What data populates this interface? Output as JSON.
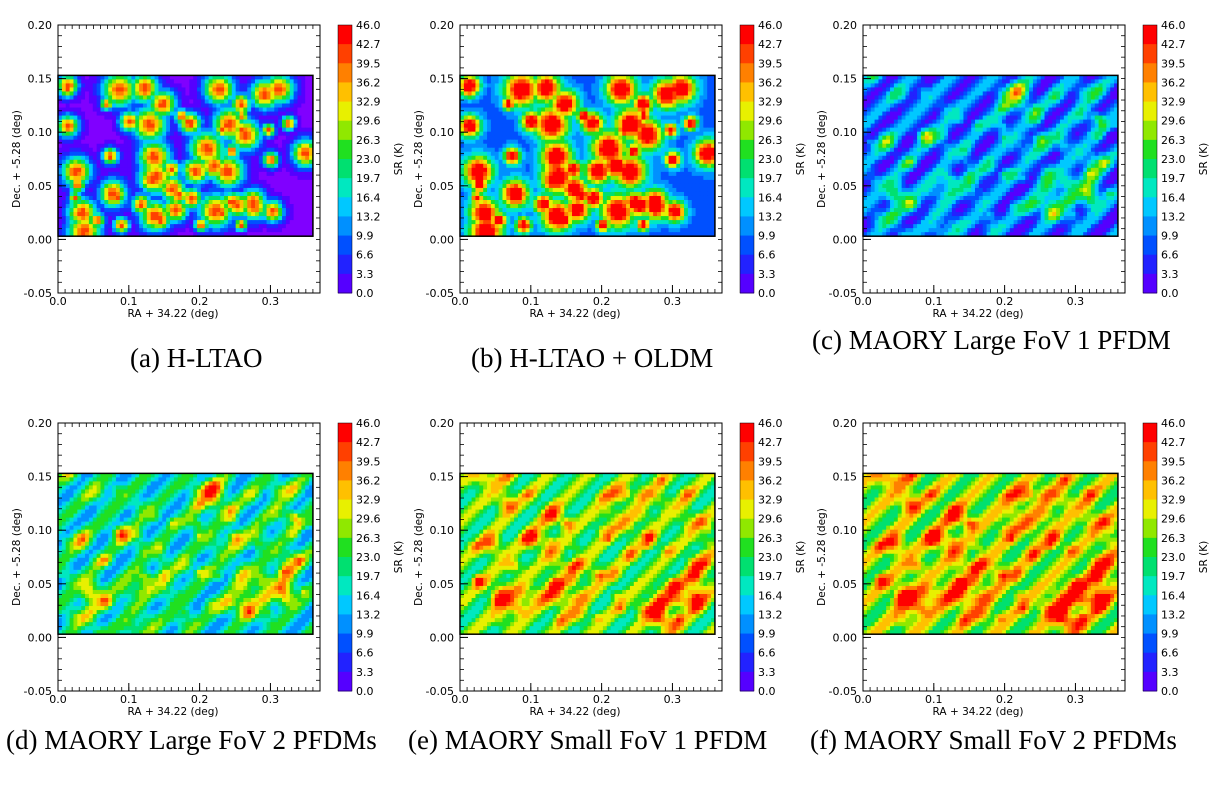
{
  "chart_data": [
    {
      "type": "heatmap",
      "title": "",
      "caption": "(a) H-LTAO",
      "xlabel": "RA + 34.22 (deg)",
      "ylabel": "Dec. + -5.28 (deg)",
      "colorbar_label": "SR (K)",
      "xlim": [
        0.0,
        0.37
      ],
      "ylim": [
        -0.05,
        0.2
      ],
      "xticks": [
        "0.0",
        "0.1",
        "0.2",
        "0.3"
      ],
      "yticks": [
        "0.20",
        "0.15",
        "0.10",
        "0.05",
        "0.00",
        "-0.05"
      ],
      "colorbar_ticks": [
        "46.0",
        "42.7",
        "39.5",
        "36.2",
        "32.9",
        "29.6",
        "26.3",
        "23.0",
        "19.7",
        "16.4",
        "13.2",
        "9.9",
        "6.6",
        "3.3",
        "0.0"
      ],
      "field": {
        "x": [
          0.0,
          0.36
        ],
        "y": [
          0.003,
          0.153
        ]
      },
      "mean_sr": 20,
      "sr_range": [
        0,
        46
      ],
      "pattern": "blobs",
      "seed": 11
    },
    {
      "type": "heatmap",
      "title": "",
      "caption": "(b) H-LTAO + OLDM",
      "xlabel": "RA + 34.22 (deg)",
      "ylabel": "Dec. + -5.28 (deg)",
      "colorbar_label": "SR (K)",
      "xlim": [
        0.0,
        0.37
      ],
      "ylim": [
        -0.05,
        0.2
      ],
      "xticks": [
        "0.0",
        "0.1",
        "0.2",
        "0.3"
      ],
      "yticks": [
        "0.20",
        "0.15",
        "0.10",
        "0.05",
        "0.00",
        "-0.05"
      ],
      "colorbar_ticks": [
        "46.0",
        "42.7",
        "39.5",
        "36.2",
        "32.9",
        "29.6",
        "26.3",
        "23.0",
        "19.7",
        "16.4",
        "13.2",
        "9.9",
        "6.6",
        "3.3",
        "0.0"
      ],
      "field": {
        "x": [
          0.0,
          0.36
        ],
        "y": [
          0.003,
          0.153
        ]
      },
      "mean_sr": 29,
      "sr_range": [
        0,
        46
      ],
      "pattern": "blobs",
      "seed": 11
    },
    {
      "type": "heatmap",
      "title": "",
      "caption": "(c) MAORY Large FoV 1 PFDM",
      "xlabel": "RA + 34.22 (deg)",
      "ylabel": "Dec. + -5.28 (deg)",
      "colorbar_label": "SR (K)",
      "xlim": [
        0.0,
        0.37
      ],
      "ylim": [
        -0.05,
        0.2
      ],
      "xticks": [
        "0.0",
        "0.1",
        "0.2",
        "0.3"
      ],
      "yticks": [
        "0.20",
        "0.15",
        "0.10",
        "0.05",
        "0.00",
        "-0.05"
      ],
      "colorbar_ticks": [
        "46.0",
        "42.7",
        "39.5",
        "36.2",
        "32.9",
        "29.6",
        "26.3",
        "23.0",
        "19.7",
        "16.4",
        "13.2",
        "9.9",
        "6.6",
        "3.3",
        "0.0"
      ],
      "field": {
        "x": [
          0.0,
          0.36
        ],
        "y": [
          0.003,
          0.153
        ]
      },
      "mean_sr": 22,
      "sr_range": [
        0,
        46
      ],
      "pattern": "mesh",
      "seed": 5
    },
    {
      "type": "heatmap",
      "title": "",
      "caption": "(d) MAORY Large FoV 2 PFDMs",
      "xlabel": "RA + 34.22 (deg)",
      "ylabel": "Dec. + -5.28 (deg)",
      "colorbar_label": "SR (K)",
      "xlim": [
        0.0,
        0.37
      ],
      "ylim": [
        -0.05,
        0.2
      ],
      "xticks": [
        "0.0",
        "0.1",
        "0.2",
        "0.3"
      ],
      "yticks": [
        "0.20",
        "0.15",
        "0.10",
        "0.05",
        "0.00",
        "-0.05"
      ],
      "colorbar_ticks": [
        "46.0",
        "42.7",
        "39.5",
        "36.2",
        "32.9",
        "29.6",
        "26.3",
        "23.0",
        "19.7",
        "16.4",
        "13.2",
        "9.9",
        "6.6",
        "3.3",
        "0.0"
      ],
      "field": {
        "x": [
          0.0,
          0.36
        ],
        "y": [
          0.003,
          0.153
        ]
      },
      "mean_sr": 31,
      "sr_range": [
        0,
        46
      ],
      "pattern": "mesh",
      "seed": 5
    },
    {
      "type": "heatmap",
      "title": "",
      "caption": "(e) MAORY Small FoV 1 PFDM",
      "xlabel": "RA + 34.22 (deg)",
      "ylabel": "Dec. + -5.28 (deg)",
      "colorbar_label": "SR (K)",
      "xlim": [
        0.0,
        0.37
      ],
      "ylim": [
        -0.05,
        0.2
      ],
      "xticks": [
        "0.0",
        "0.1",
        "0.2",
        "0.3"
      ],
      "yticks": [
        "0.20",
        "0.15",
        "0.10",
        "0.05",
        "0.00",
        "-0.05"
      ],
      "colorbar_ticks": [
        "46.0",
        "42.7",
        "39.5",
        "36.2",
        "32.9",
        "29.6",
        "26.3",
        "23.0",
        "19.7",
        "16.4",
        "13.2",
        "9.9",
        "6.6",
        "3.3",
        "0.0"
      ],
      "field": {
        "x": [
          0.0,
          0.36
        ],
        "y": [
          0.003,
          0.153
        ]
      },
      "mean_sr": 37,
      "sr_range": [
        0,
        46
      ],
      "pattern": "mesh",
      "seed": 8
    },
    {
      "type": "heatmap",
      "title": "",
      "caption": "(f) MAORY Small FoV 2 PFDMs",
      "xlabel": "RA + 34.22 (deg)",
      "ylabel": "Dec. + -5.28 (deg)",
      "colorbar_label": "SR (K)",
      "xlim": [
        0.0,
        0.37
      ],
      "ylim": [
        -0.05,
        0.2
      ],
      "xticks": [
        "0.0",
        "0.1",
        "0.2",
        "0.3"
      ],
      "yticks": [
        "0.20",
        "0.15",
        "0.10",
        "0.05",
        "0.00",
        "-0.05"
      ],
      "colorbar_ticks": [
        "46.0",
        "42.7",
        "39.5",
        "36.2",
        "32.9",
        "29.6",
        "26.3",
        "23.0",
        "19.7",
        "16.4",
        "13.2",
        "9.9",
        "6.6",
        "3.3",
        "0.0"
      ],
      "field": {
        "x": [
          0.0,
          0.36
        ],
        "y": [
          0.003,
          0.153
        ]
      },
      "mean_sr": 40,
      "sr_range": [
        0,
        46
      ],
      "pattern": "mesh",
      "seed": 8
    }
  ],
  "colormap": [
    "#8000ff",
    "#5500ff",
    "#2222ff",
    "#0050ff",
    "#0090ff",
    "#00c8ff",
    "#00e8c0",
    "#00e070",
    "#20e020",
    "#90e800",
    "#e8f000",
    "#ffc000",
    "#ff8000",
    "#ff4000",
    "#ff0000"
  ]
}
